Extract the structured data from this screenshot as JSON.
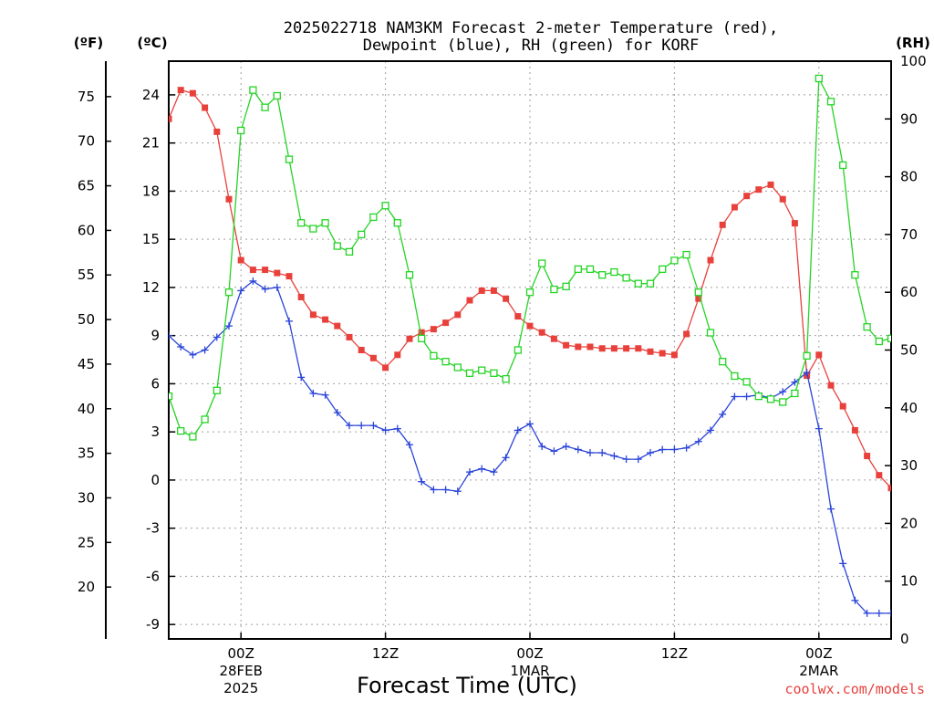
{
  "chart_data": {
    "type": "line",
    "title_line1": "2025022718 NAM3KM Forecast 2-meter Temperature (red),",
    "title_line2": "Dewpoint (blue), RH (green) for KORF",
    "xlabel": "Forecast Time (UTC)",
    "credit": "coolwx.com/models",
    "units": {
      "fahrenheit": "(ºF)",
      "celsius": "(ºC)",
      "rh": "(RH)"
    },
    "x_ticks": [
      {
        "hour": 6,
        "label": "00Z",
        "sub1": "28FEB",
        "sub2": "2025"
      },
      {
        "hour": 18,
        "label": "12Z",
        "sub1": "",
        "sub2": ""
      },
      {
        "hour": 30,
        "label": "00Z",
        "sub1": "1MAR",
        "sub2": ""
      },
      {
        "hour": 42,
        "label": "12Z",
        "sub1": "",
        "sub2": ""
      },
      {
        "hour": 54,
        "label": "00Z",
        "sub1": "2MAR",
        "sub2": ""
      }
    ],
    "xlim": [
      0,
      60
    ],
    "ylim_celsius": [
      -9.9,
      26.1
    ],
    "yticks_celsius": [
      -9,
      -6,
      -3,
      0,
      3,
      6,
      9,
      12,
      15,
      18,
      21,
      24
    ],
    "yticks_fahrenheit": [
      20,
      25,
      30,
      35,
      40,
      45,
      50,
      55,
      60,
      65,
      70,
      75
    ],
    "ylim_rh": [
      0,
      100
    ],
    "yticks_rh": [
      0,
      10,
      20,
      30,
      40,
      50,
      60,
      70,
      80,
      90,
      100
    ],
    "grid": true,
    "x": [
      0,
      1,
      2,
      3,
      4,
      5,
      6,
      7,
      8,
      9,
      10,
      11,
      12,
      13,
      14,
      15,
      16,
      17,
      18,
      19,
      20,
      21,
      22,
      23,
      24,
      25,
      26,
      27,
      28,
      29,
      30,
      31,
      32,
      33,
      34,
      35,
      36,
      37,
      38,
      39,
      40,
      41,
      42,
      43,
      44,
      45,
      46,
      47,
      48,
      49,
      50,
      51,
      52,
      53,
      54,
      55,
      56,
      57,
      58,
      59,
      60
    ],
    "series": [
      {
        "name": "2-meter Temperature",
        "color": "#e8413c",
        "marker": "filled-square",
        "axis": "celsius",
        "values": [
          22.5,
          24.3,
          24.1,
          23.2,
          21.7,
          17.5,
          13.7,
          13.1,
          13.1,
          12.9,
          12.7,
          11.4,
          10.3,
          10.0,
          9.6,
          8.9,
          8.1,
          7.6,
          7.0,
          7.8,
          8.8,
          9.2,
          9.4,
          9.8,
          10.3,
          11.2,
          11.8,
          11.8,
          11.3,
          10.2,
          9.6,
          9.2,
          8.8,
          8.4,
          8.3,
          8.3,
          8.2,
          8.2,
          8.2,
          8.2,
          8.0,
          7.9,
          7.8,
          9.1,
          11.3,
          13.7,
          15.9,
          17.0,
          17.7,
          18.1,
          18.4,
          17.5,
          16.0,
          6.5,
          7.8,
          5.9,
          4.6,
          3.1,
          1.5,
          0.3,
          -0.5
        ]
      },
      {
        "name": "Dewpoint",
        "color": "#2b45d9",
        "marker": "plus",
        "axis": "celsius",
        "values": [
          9.0,
          8.3,
          7.8,
          8.1,
          8.9,
          9.6,
          11.8,
          12.4,
          11.9,
          12.0,
          9.9,
          6.4,
          5.4,
          5.3,
          4.2,
          3.4,
          3.4,
          3.4,
          3.1,
          3.2,
          2.2,
          -0.1,
          -0.6,
          -0.6,
          -0.7,
          0.5,
          0.7,
          0.5,
          1.4,
          3.1,
          3.5,
          2.1,
          1.8,
          2.1,
          1.9,
          1.7,
          1.7,
          1.5,
          1.3,
          1.3,
          1.7,
          1.9,
          1.9,
          2.0,
          2.4,
          3.1,
          4.1,
          5.2,
          5.2,
          5.3,
          5.1,
          5.5,
          6.1,
          6.7,
          3.2,
          -1.8,
          -5.2,
          -7.5,
          -8.3,
          -8.3,
          -8.3
        ]
      },
      {
        "name": "RH",
        "color": "#25d425",
        "marker": "open-square",
        "axis": "rh",
        "values": [
          42,
          36,
          35,
          38,
          43,
          60,
          88,
          95,
          92,
          94,
          83,
          72,
          71,
          72,
          68,
          67,
          70,
          73,
          75,
          72,
          63,
          52,
          49,
          48,
          47,
          46,
          46.5,
          46,
          45,
          50,
          60,
          65,
          60.5,
          61,
          64,
          64,
          63,
          63.5,
          62.5,
          61.5,
          61.5,
          64,
          65.5,
          66.5,
          60,
          53,
          48,
          45.5,
          44.5,
          42,
          41.5,
          41,
          42.5,
          49,
          97,
          93,
          82,
          63,
          54,
          51.5,
          52
        ]
      }
    ]
  }
}
